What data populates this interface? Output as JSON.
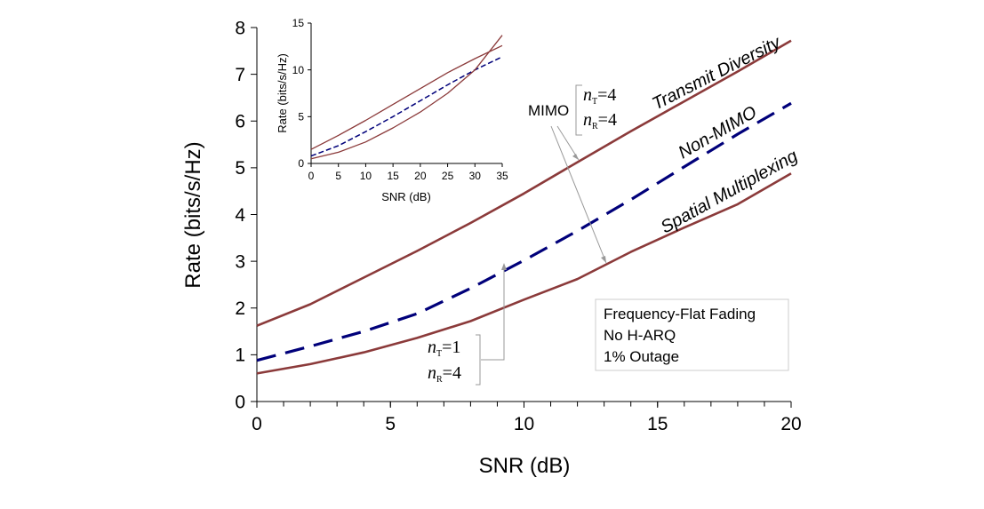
{
  "chart_data": [
    {
      "type": "line",
      "xlabel": "SNR (dB)",
      "ylabel": "Rate (bits/s/Hz)",
      "xlim": [
        0,
        20
      ],
      "ylim": [
        0,
        8
      ],
      "xticks": [
        "0",
        "5",
        "10",
        "15",
        "20"
      ],
      "yticks": [
        "0",
        "1",
        "2",
        "3",
        "4",
        "5",
        "6",
        "7",
        "8"
      ],
      "x": [
        0,
        2,
        4,
        6,
        8,
        10,
        12,
        14,
        16,
        18,
        20
      ],
      "series": [
        {
          "name": "Transmit Diversity",
          "color": "#8B3A3A",
          "style": "solid",
          "values": [
            1.62,
            2.08,
            2.65,
            3.22,
            3.82,
            4.45,
            5.12,
            5.78,
            6.42,
            7.06,
            7.72
          ]
        },
        {
          "name": "Non-MIMO",
          "color": "#00007A",
          "style": "dashed",
          "values": [
            0.88,
            1.18,
            1.5,
            1.88,
            2.42,
            3.02,
            3.65,
            4.32,
            5.02,
            5.72,
            6.38
          ]
        },
        {
          "name": "Spatial Multiplexing",
          "color": "#8B3A3A",
          "style": "solid",
          "values": [
            0.6,
            0.8,
            1.05,
            1.36,
            1.72,
            2.18,
            2.62,
            3.2,
            3.72,
            4.22,
            4.88
          ]
        }
      ],
      "annotations": {
        "mimo_label": "MIMO",
        "mimo_nt_var": "n",
        "mimo_nt_sub": "T",
        "mimo_nt_val": "=4",
        "mimo_nr_var": "n",
        "mimo_nr_sub": "R",
        "mimo_nr_val": "=4",
        "siso_nt_var": "n",
        "siso_nt_sub": "T",
        "siso_nt_val": "=1",
        "siso_nr_var": "n",
        "siso_nr_sub": "R",
        "siso_nr_val": "=4"
      },
      "legend_box": [
        "Frequency-Flat Fading",
        "No H-ARQ",
        "1% Outage"
      ]
    },
    {
      "type": "line",
      "xlabel": "SNR (dB)",
      "ylabel": "Rate (bits/s/Hz)",
      "xlim": [
        0,
        35
      ],
      "ylim": [
        0,
        15
      ],
      "xticks": [
        "0",
        "5",
        "10",
        "15",
        "20",
        "25",
        "30",
        "35"
      ],
      "yticks": [
        "0",
        "5",
        "10",
        "15"
      ],
      "x": [
        0,
        5,
        10,
        15,
        20,
        25,
        30,
        35
      ],
      "series": [
        {
          "name": "Transmit Diversity",
          "color": "#8B3A3A",
          "style": "solid",
          "values": [
            1.5,
            3.0,
            4.6,
            6.3,
            8.0,
            9.7,
            11.2,
            12.6
          ]
        },
        {
          "name": "Non-MIMO",
          "color": "#00007A",
          "style": "dashed",
          "values": [
            0.8,
            1.9,
            3.4,
            5.0,
            6.7,
            8.4,
            10.0,
            11.4
          ]
        },
        {
          "name": "Spatial Multiplexing",
          "color": "#8B3A3A",
          "style": "solid",
          "values": [
            0.5,
            1.2,
            2.3,
            3.8,
            5.5,
            7.5,
            10.0,
            13.7
          ]
        }
      ]
    }
  ]
}
